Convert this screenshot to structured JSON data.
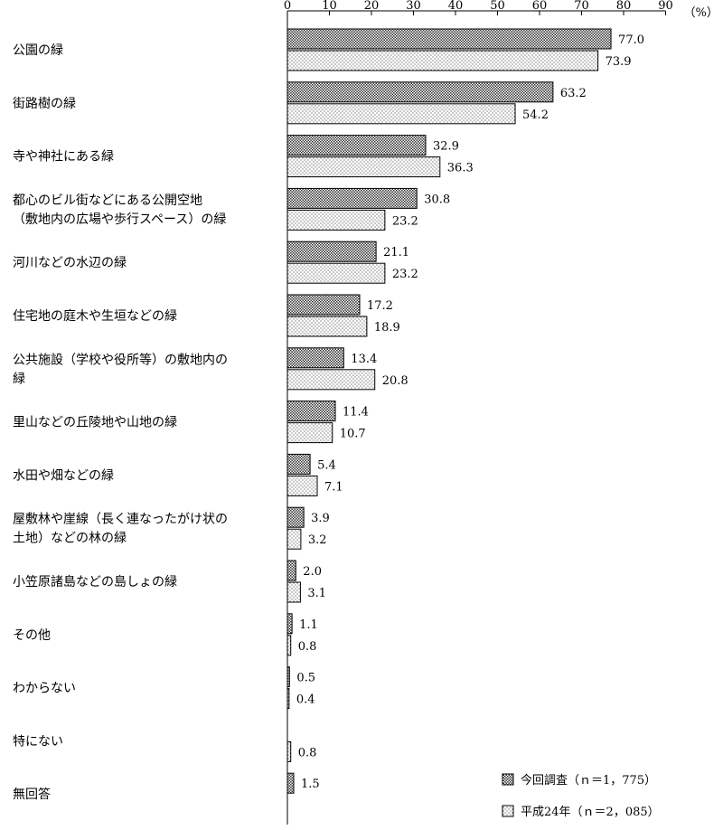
{
  "chart_data": {
    "type": "bar",
    "orientation": "horizontal",
    "unit_label": "（%）",
    "xlim": [
      0,
      90
    ],
    "x_ticks": [
      "0",
      "10",
      "20",
      "30",
      "40",
      "50",
      "60",
      "70",
      "80",
      "90"
    ],
    "grid": false,
    "legend_position": "bottom-right",
    "categories": [
      [
        "公園の緑"
      ],
      [
        "街路樹の緑"
      ],
      [
        "寺や神社にある緑"
      ],
      [
        "都心のビル街などにある公開空地",
        "（敷地内の広場や歩行スペース）の緑"
      ],
      [
        "河川などの水辺の緑"
      ],
      [
        "住宅地の庭木や生垣などの緑"
      ],
      [
        "公共施設（学校や役所等）の敷地内の",
        "緑"
      ],
      [
        "里山などの丘陵地や山地の緑"
      ],
      [
        "水田や畑などの緑"
      ],
      [
        "屋敷林や崖線（長く連なったがけ状の",
        "土地）などの林の緑"
      ],
      [
        "小笠原諸島などの島しょの緑"
      ],
      [
        "その他"
      ],
      [
        "わからない"
      ],
      [
        "特にない"
      ],
      [
        "無回答"
      ]
    ],
    "series": [
      {
        "name": "今回調査（ｎ＝1，775）",
        "values": [
          77.0,
          63.2,
          32.9,
          30.8,
          21.1,
          17.2,
          13.4,
          11.4,
          5.4,
          3.9,
          2.0,
          1.1,
          0.5,
          null,
          1.5
        ],
        "labels": [
          "77.0",
          "63.2",
          "32.9",
          "30.8",
          "21.1",
          "17.2",
          "13.4",
          "11.4",
          "5.4",
          "3.9",
          "2.0",
          "1.1",
          "0.5",
          "",
          "1.5"
        ],
        "pattern": "dense-dots"
      },
      {
        "name": "平成24年（ｎ＝2，085）",
        "values": [
          73.9,
          54.2,
          36.3,
          23.2,
          23.2,
          18.9,
          20.8,
          10.7,
          7.1,
          3.2,
          3.1,
          0.8,
          0.4,
          0.8,
          null
        ],
        "labels": [
          "73.9",
          "54.2",
          "36.3",
          "23.2",
          "23.2",
          "18.9",
          "20.8",
          "10.7",
          "7.1",
          "3.2",
          "3.1",
          "0.8",
          "0.4",
          "0.8",
          ""
        ],
        "pattern": "sparse-dots"
      }
    ]
  }
}
